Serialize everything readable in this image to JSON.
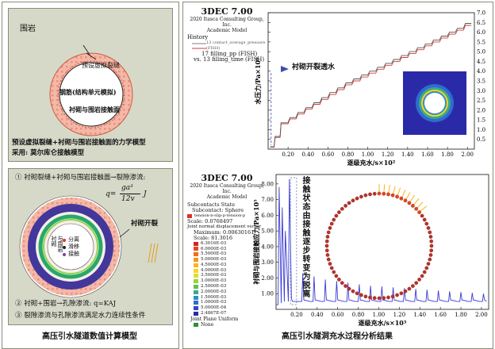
{
  "left": {
    "top_panel": {
      "rock_label": "围岩",
      "crack_label": "预设虚拟裂缝",
      "rebar_label": "钢筋(结构单元模拟)",
      "contact_label": "衬砌与围岩接触面",
      "desc_line1": "预设虚拟裂缝+衬砌与围岩接触面的力学模型",
      "desc_line2": "采用: 莫尔库仑接触模型"
    },
    "mid_panel": {
      "line1": "① 衬砌裂缝+衬砌与围岩接触面→裂隙渗流:",
      "formula_q": "q=",
      "formula_num": "ga³",
      "formula_den": "12v",
      "formula_J": "J",
      "crack_open": "衬砌开裂",
      "inner_label1": "衬砌",
      "inner_label2": "与围岩",
      "legend": [
        "分离",
        "滑移",
        "接触"
      ],
      "line2": "② 衬砌+围岩→孔隙渗流: q=KAJ",
      "line3": "③ 裂隙渗流与孔隙渗流满足水力连续性条件"
    },
    "caption": "高压引水隧道数值计算模型"
  },
  "right": {
    "top_chart": {
      "banner_title": "3DEC 7.00",
      "banner_lines": [
        "2020 Itasca Consulting Group, Inc.",
        "Academic Model"
      ],
      "history_label": "History",
      "history_sub": "13 contact_average_pressure (FISH)",
      "history_line1": "17 filling_pp (FISH)",
      "history_line2": "vs. 13 filling_time (FISH)",
      "annotation": "衬砌开裂透水"
    },
    "bottom_chart": {
      "banner_title": "3DEC 7.00",
      "banner_lines": [
        "2020 Itasca Consulting Group, Inc.",
        "Academic Model"
      ],
      "subcontacts_title": "Subcontacts State",
      "subcontacts_sphere": "Subcontact: Sphere",
      "legend_item": "tension-n-slip-p-tension-p",
      "scale_line": "Scale: 0.0768497",
      "joint_title": "Joint normal displacement vector",
      "joint_max": "Maximum: 0.00630161",
      "joint_scale": "Scale: 81.3016",
      "colorbar_values": [
        "6.3016E-03",
        "6.0000E-03",
        "5.5000E-03",
        "5.0000E-03",
        "4.5000E-03",
        "4.0000E-03",
        "3.5000E-03",
        "3.0000E-03",
        "2.5000E-03",
        "2.0000E-03",
        "1.5000E-03",
        "1.0000E-03",
        "5.0000E-04",
        "2.4867E-07"
      ],
      "colorbar_colors": [
        "#d2251d",
        "#e6451c",
        "#f06d1a",
        "#f6941a",
        "#fab51e",
        "#fbd326",
        "#d8e12c",
        "#9cd236",
        "#5fc24b",
        "#3aa98a",
        "#2f8fc0",
        "#2f6bd0",
        "#3345c8",
        "#2a2aa8"
      ],
      "joint_plane": "Joint Plane Uniform",
      "none_label": "None",
      "annotation": "接触状态由接触逐步转变为脱离"
    },
    "caption": "高压引水隧洞充水过程分析结果"
  },
  "chart_data": [
    {
      "type": "line",
      "xlabel": "逐级充水/s×10²",
      "ylabel": "水压力/Pa×10⁶",
      "x_ticks": [
        "0.20",
        "0.40",
        "0.60",
        "0.80",
        "1.00",
        "1.20",
        "1.40",
        "1.60",
        "1.80",
        "2.00"
      ],
      "y_ticks": [
        "0.5",
        "1.0",
        "1.5",
        "2.0",
        "2.5",
        "3.0",
        "3.5",
        "4.0",
        "4.5",
        "5.0",
        "5.5",
        "6.0",
        "6.5",
        "7.0"
      ],
      "xlim": [
        0,
        2.07
      ],
      "ylim": [
        0,
        7.0
      ],
      "series": [
        {
          "name": "17 filling_pp (FISH)",
          "color": "#d43b3b",
          "x": [
            0.02,
            0.06,
            0.07,
            0.12,
            0.13,
            0.2,
            0.22,
            0.28,
            0.3,
            0.36,
            0.38,
            0.44,
            0.46,
            0.52,
            0.54,
            0.6,
            0.62,
            0.68,
            0.7,
            0.76,
            0.78,
            0.84,
            0.86,
            0.92,
            0.94,
            1.0,
            1.02,
            1.08,
            1.1,
            1.16,
            1.18,
            1.24,
            1.26,
            1.32,
            1.34,
            1.4,
            1.42,
            1.48,
            1.5,
            1.56,
            1.58,
            1.64,
            1.66,
            1.72,
            1.74,
            1.8,
            1.82,
            1.88,
            1.9,
            1.96,
            1.98,
            2.04
          ],
          "y": [
            0.1,
            0.1,
            0.6,
            0.6,
            1.3,
            1.3,
            1.55,
            1.55,
            1.8,
            1.8,
            2.05,
            2.05,
            2.3,
            2.3,
            2.55,
            2.55,
            2.8,
            2.8,
            3.05,
            3.05,
            3.3,
            3.3,
            3.5,
            3.5,
            3.7,
            3.7,
            3.9,
            3.9,
            4.1,
            4.1,
            4.3,
            4.3,
            4.5,
            4.5,
            4.7,
            4.7,
            4.9,
            4.9,
            5.1,
            5.1,
            5.3,
            5.3,
            5.5,
            5.5,
            5.7,
            5.7,
            5.9,
            5.9,
            6.1,
            6.1,
            6.35,
            6.35
          ]
        },
        {
          "name": "13 contact_average_pressure (FISH)",
          "color": "#555555",
          "x": [
            0.02,
            0.06,
            0.07,
            0.12,
            0.13,
            0.2,
            0.22,
            0.28,
            0.3,
            0.36,
            0.38,
            0.44,
            0.46,
            0.52,
            0.54,
            0.6,
            0.62,
            0.68,
            0.7,
            0.76,
            0.78,
            0.84,
            0.86,
            0.92,
            0.94,
            1.0,
            1.02,
            1.08,
            1.1,
            1.16,
            1.18,
            1.24,
            1.26,
            1.32,
            1.34,
            1.4,
            1.42,
            1.48,
            1.5,
            1.56,
            1.58,
            1.64,
            1.66,
            1.72,
            1.74,
            1.8,
            1.82,
            1.88,
            1.9,
            1.96,
            1.98,
            2.04
          ],
          "y": [
            0.12,
            0.12,
            0.65,
            0.65,
            1.35,
            1.35,
            1.62,
            1.62,
            1.88,
            1.88,
            2.13,
            2.13,
            2.38,
            2.38,
            2.64,
            2.64,
            2.9,
            2.9,
            3.14,
            3.14,
            3.4,
            3.4,
            3.6,
            3.6,
            3.8,
            3.8,
            4.0,
            4.0,
            4.2,
            4.2,
            4.4,
            4.4,
            4.6,
            4.6,
            4.8,
            4.8,
            5.0,
            5.0,
            5.2,
            5.2,
            5.4,
            5.4,
            5.6,
            5.6,
            5.8,
            5.8,
            6.0,
            6.0,
            6.2,
            6.2,
            6.45,
            6.45
          ]
        }
      ]
    },
    {
      "type": "line",
      "xlabel": "逐级充水/s×10³",
      "ylabel": "衬砌与围岩接触应力/Pa×10⁵",
      "x_ticks": [
        "0.20",
        "0.40",
        "0.60",
        "0.80",
        "1.00",
        "1.20",
        "1.40",
        "1.60",
        "1.80",
        "2.00"
      ],
      "y_ticks": [
        "1.00",
        "2.00",
        "3.00",
        "4.00",
        "5.00",
        "6.00",
        "7.00",
        "8.00"
      ],
      "xlim": [
        0,
        2.07
      ],
      "ylim": [
        0,
        8.6
      ],
      "series": [
        {
          "name": "contact stress",
          "color": "#3b3bd4",
          "x": [
            0.0,
            0.02,
            0.03,
            0.05,
            0.06,
            0.08,
            0.09,
            0.12,
            0.13,
            0.15,
            0.16,
            0.25,
            0.26,
            0.27,
            0.33,
            0.36,
            0.37,
            0.38,
            0.44,
            0.47,
            0.48,
            0.49,
            0.55,
            0.58,
            0.59,
            0.6,
            0.66,
            0.69,
            0.7,
            0.71,
            0.77,
            0.8,
            0.81,
            0.82,
            0.88,
            0.91,
            0.92,
            0.93,
            0.99,
            1.02,
            1.03,
            1.04,
            1.1,
            1.13,
            1.14,
            1.15,
            1.21,
            1.24,
            1.25,
            1.26,
            1.32,
            1.35,
            1.36,
            1.37,
            1.43,
            1.46,
            1.47,
            1.48,
            1.54,
            1.57,
            1.58,
            1.59,
            1.65,
            1.68,
            1.69,
            1.7,
            1.76,
            1.79,
            1.8,
            1.81,
            1.87,
            1.9,
            1.91,
            1.92,
            1.98,
            2.01,
            2.02,
            2.03,
            2.05
          ],
          "y": [
            0.3,
            0.3,
            7.8,
            0.4,
            6.5,
            0.5,
            5.0,
            0.5,
            8.3,
            0.7,
            0.5,
            0.5,
            2.3,
            0.6,
            0.5,
            0.5,
            2.1,
            0.6,
            0.5,
            0.5,
            1.9,
            0.6,
            0.5,
            0.5,
            1.8,
            0.6,
            0.5,
            0.5,
            1.7,
            0.6,
            0.5,
            0.5,
            1.6,
            0.6,
            0.5,
            0.5,
            1.5,
            0.6,
            0.5,
            0.5,
            1.45,
            0.6,
            0.5,
            0.5,
            1.4,
            0.6,
            0.5,
            0.5,
            1.35,
            0.6,
            0.5,
            0.5,
            1.3,
            0.6,
            0.5,
            0.5,
            1.25,
            0.6,
            0.5,
            0.5,
            1.2,
            0.6,
            0.5,
            0.5,
            1.15,
            0.6,
            0.5,
            0.5,
            1.1,
            0.6,
            0.5,
            0.5,
            1.05,
            0.6,
            0.5,
            0.5,
            1.0,
            0.6,
            0.5
          ]
        }
      ]
    }
  ]
}
